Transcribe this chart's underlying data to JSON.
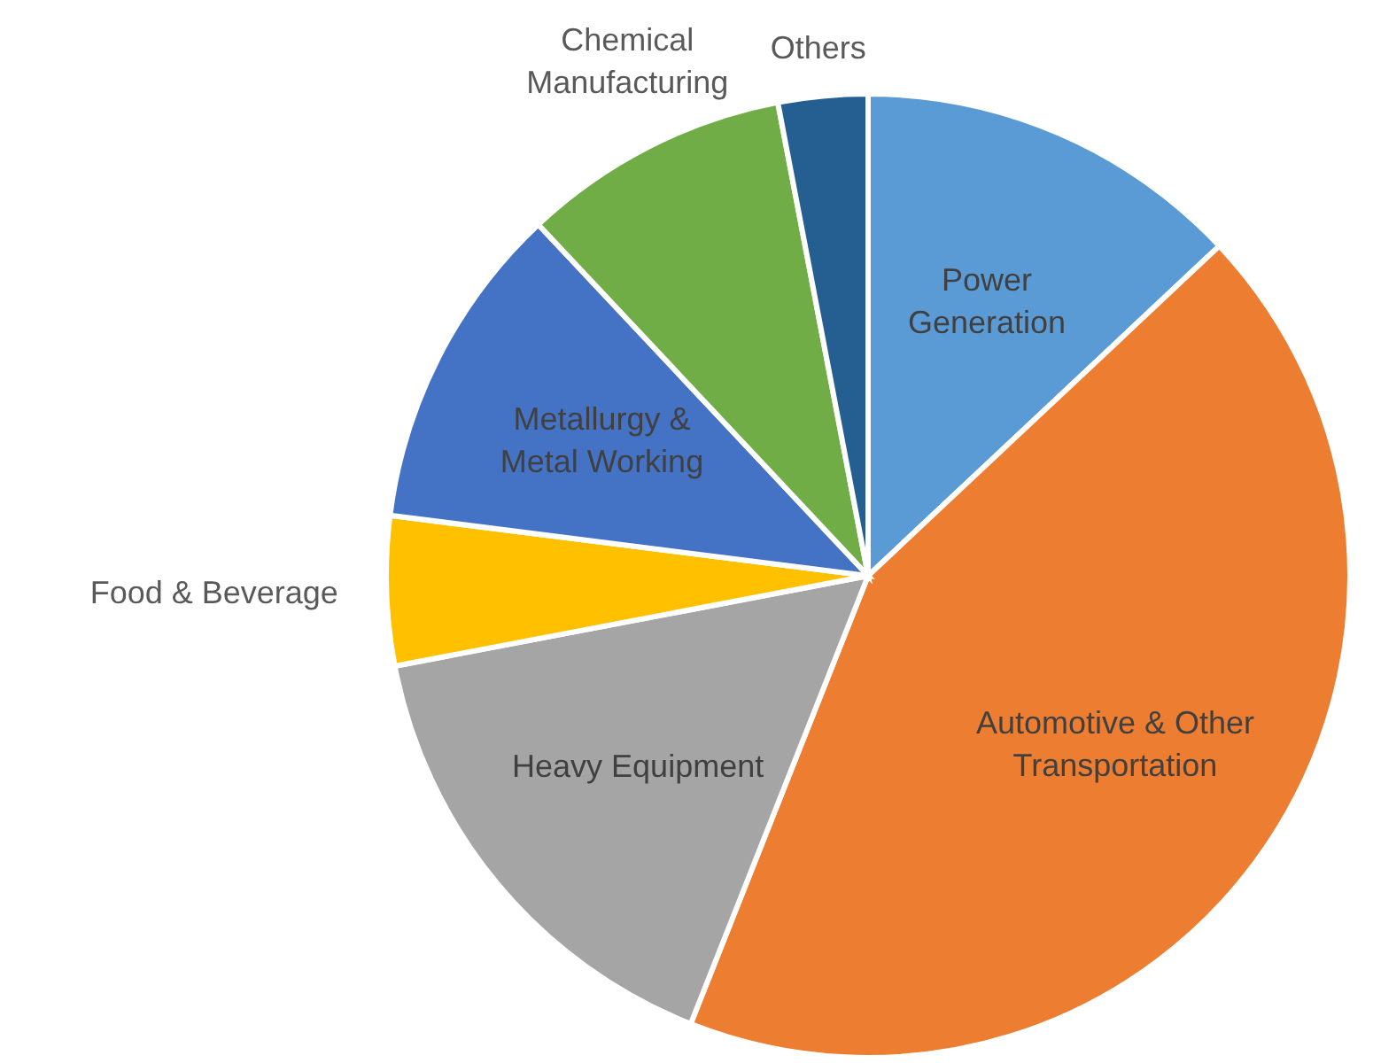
{
  "chart_data": {
    "type": "pie",
    "categories": [
      "Power Generation",
      "Automotive & Other Transportation",
      "Heavy Equipment",
      "Food & Beverage",
      "Metallurgy & Metal Working",
      "Chemical Manufacturing",
      "Others"
    ],
    "values": [
      13,
      43,
      16,
      5,
      11,
      9,
      3
    ],
    "colors": [
      "#5b9bd5",
      "#ed7d31",
      "#a5a5a5",
      "#ffc000",
      "#4472c4",
      "#70ad47",
      "#255e91"
    ]
  }
}
